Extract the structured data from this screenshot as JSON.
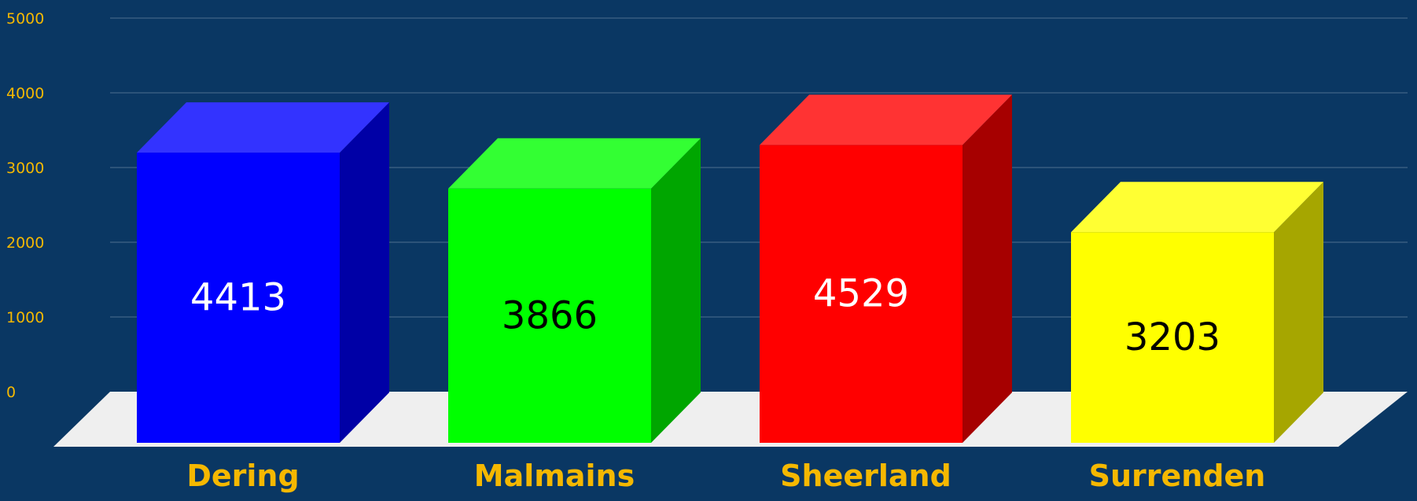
{
  "chart_data": {
    "type": "bar",
    "title": "",
    "xlabel": "",
    "ylabel": "",
    "categories": [
      "Dering",
      "Malmains",
      "Sheerland",
      "Surrenden"
    ],
    "values": [
      4413,
      3866,
      4529,
      3203
    ],
    "ylim": [
      0,
      5000
    ],
    "yticks": [
      0,
      1000,
      2000,
      3000,
      4000,
      5000
    ],
    "grid": true,
    "legend": "none",
    "bar_colors": {
      "front": [
        "#0000ff",
        "#00ff00",
        "#ff0000",
        "#ffff00"
      ],
      "top": [
        "#3333ff",
        "#33ff33",
        "#ff3333",
        "#ffff33"
      ],
      "side": [
        "#0000a6",
        "#00a600",
        "#a60000",
        "#a6a600"
      ]
    },
    "value_label_colors": [
      "#ffffff",
      "#000000",
      "#ffffff",
      "#000000"
    ],
    "colors": {
      "background": "#0a3763",
      "axis_text": "#f5b800",
      "gridline": "#4d6f8f",
      "floor": "#efefef"
    }
  }
}
